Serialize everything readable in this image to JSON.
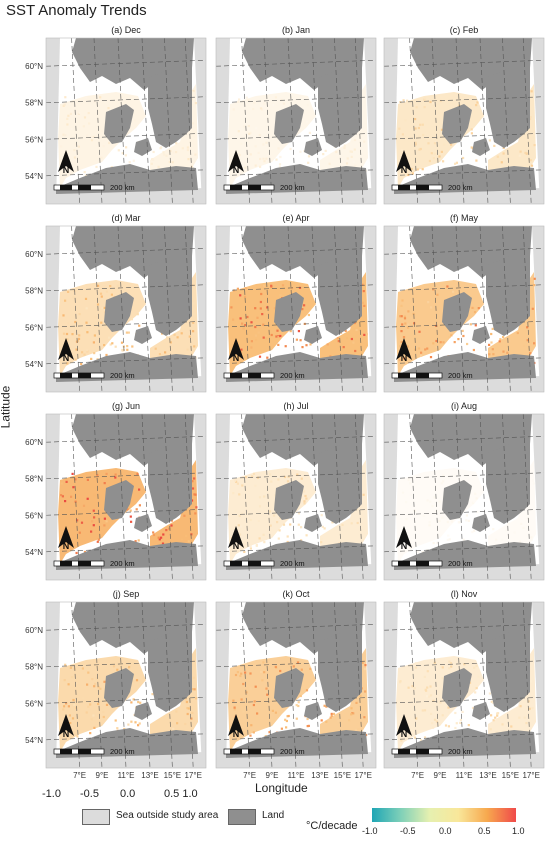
{
  "title": "SST Anomaly Trends",
  "y_axis_label": "Latitude",
  "x_axis_label": "Longitude",
  "lat_ticks": [
    "60°N",
    "58°N",
    "56°N",
    "54°N"
  ],
  "lon_ticks": [
    "7°E",
    "9°E",
    "11°E",
    "13°E",
    "15°E",
    "17°E"
  ],
  "scale_bar_label": "200 km",
  "north_arrow_label": "N",
  "panels": [
    {
      "label": "(a) Dec",
      "trend_level": 0.15
    },
    {
      "label": "(b) Jan",
      "trend_level": 0.12
    },
    {
      "label": "(c) Feb",
      "trend_level": 0.3
    },
    {
      "label": "(d) Mar",
      "trend_level": 0.4
    },
    {
      "label": "(e) Apr",
      "trend_level": 0.7
    },
    {
      "label": "(f) May",
      "trend_level": 0.6
    },
    {
      "label": "(g) Jun",
      "trend_level": 0.75
    },
    {
      "label": "(h) Jul",
      "trend_level": 0.25
    },
    {
      "label": "(i) Aug",
      "trend_level": 0.05
    },
    {
      "label": "(j) Sep",
      "trend_level": 0.45
    },
    {
      "label": "(k) Oct",
      "trend_level": 0.55
    },
    {
      "label": "(l) Nov",
      "trend_level": 0.25
    }
  ],
  "stray_scale_labels": [
    "-1.0",
    "-0.5",
    "0.0",
    "0.5 1.0"
  ],
  "legend": {
    "sea_outside": "Sea outside study area",
    "land": "Land",
    "colorbar_title": "°C/decade",
    "colorbar_ticks": [
      "-1.0",
      "-0.5",
      "0.0",
      "0.5",
      "1.0"
    ]
  },
  "colors": {
    "land": "#8f8f8f",
    "sea_outside": "#dcdcdc",
    "colorbar": [
      "#1fa6b5",
      "#7fd0b8",
      "#e6f0b0",
      "#f9e79a",
      "#f7a84e",
      "#f04a4a"
    ]
  }
}
